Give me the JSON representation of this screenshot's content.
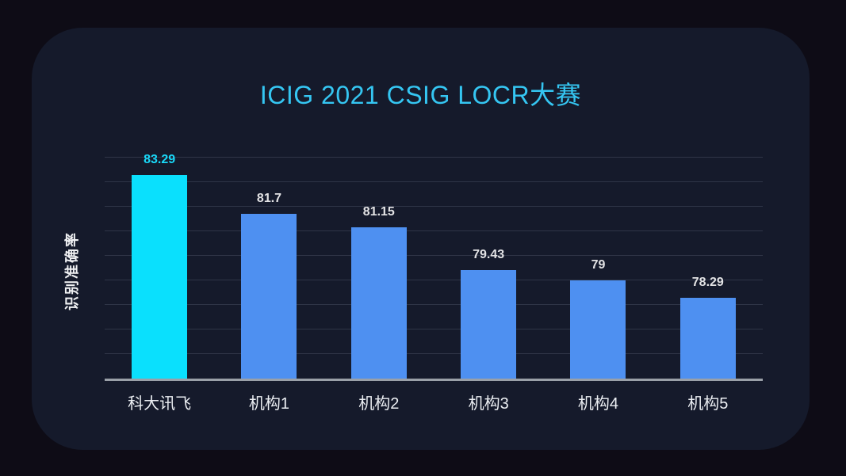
{
  "title": "ICIG 2021 CSIG LOCR大赛",
  "colors": {
    "background": "#0e0c16",
    "panel": "#151a2b",
    "title_text": "#35c6f2",
    "gridline": "#2f3547",
    "axis_line": "#9aa0a8",
    "bar_normal": "#4e90f1",
    "bar_highlight": "#0ae0fd",
    "value_label_normal": "#e2e2e4",
    "value_label_highlight": "#19d8f8",
    "category_label": "#eceff3"
  },
  "chart_data": {
    "type": "bar",
    "title": "ICIG 2021 CSIG LOCR大赛",
    "xlabel": "",
    "ylabel": "识别准确率",
    "categories": [
      "科大讯飞",
      "机构1",
      "机构2",
      "机构3",
      "机构4",
      "机构5"
    ],
    "values": [
      83.29,
      81.7,
      81.15,
      79.43,
      79,
      78.29
    ],
    "value_labels": [
      "83.29",
      "81.7",
      "81.15",
      "79.43",
      "79",
      "78.29"
    ],
    "highlight_index": 0,
    "ylim": [
      75,
      84
    ],
    "gridline_step": 1,
    "y_tick_labels_visible": false,
    "grid": true,
    "legend": false
  }
}
